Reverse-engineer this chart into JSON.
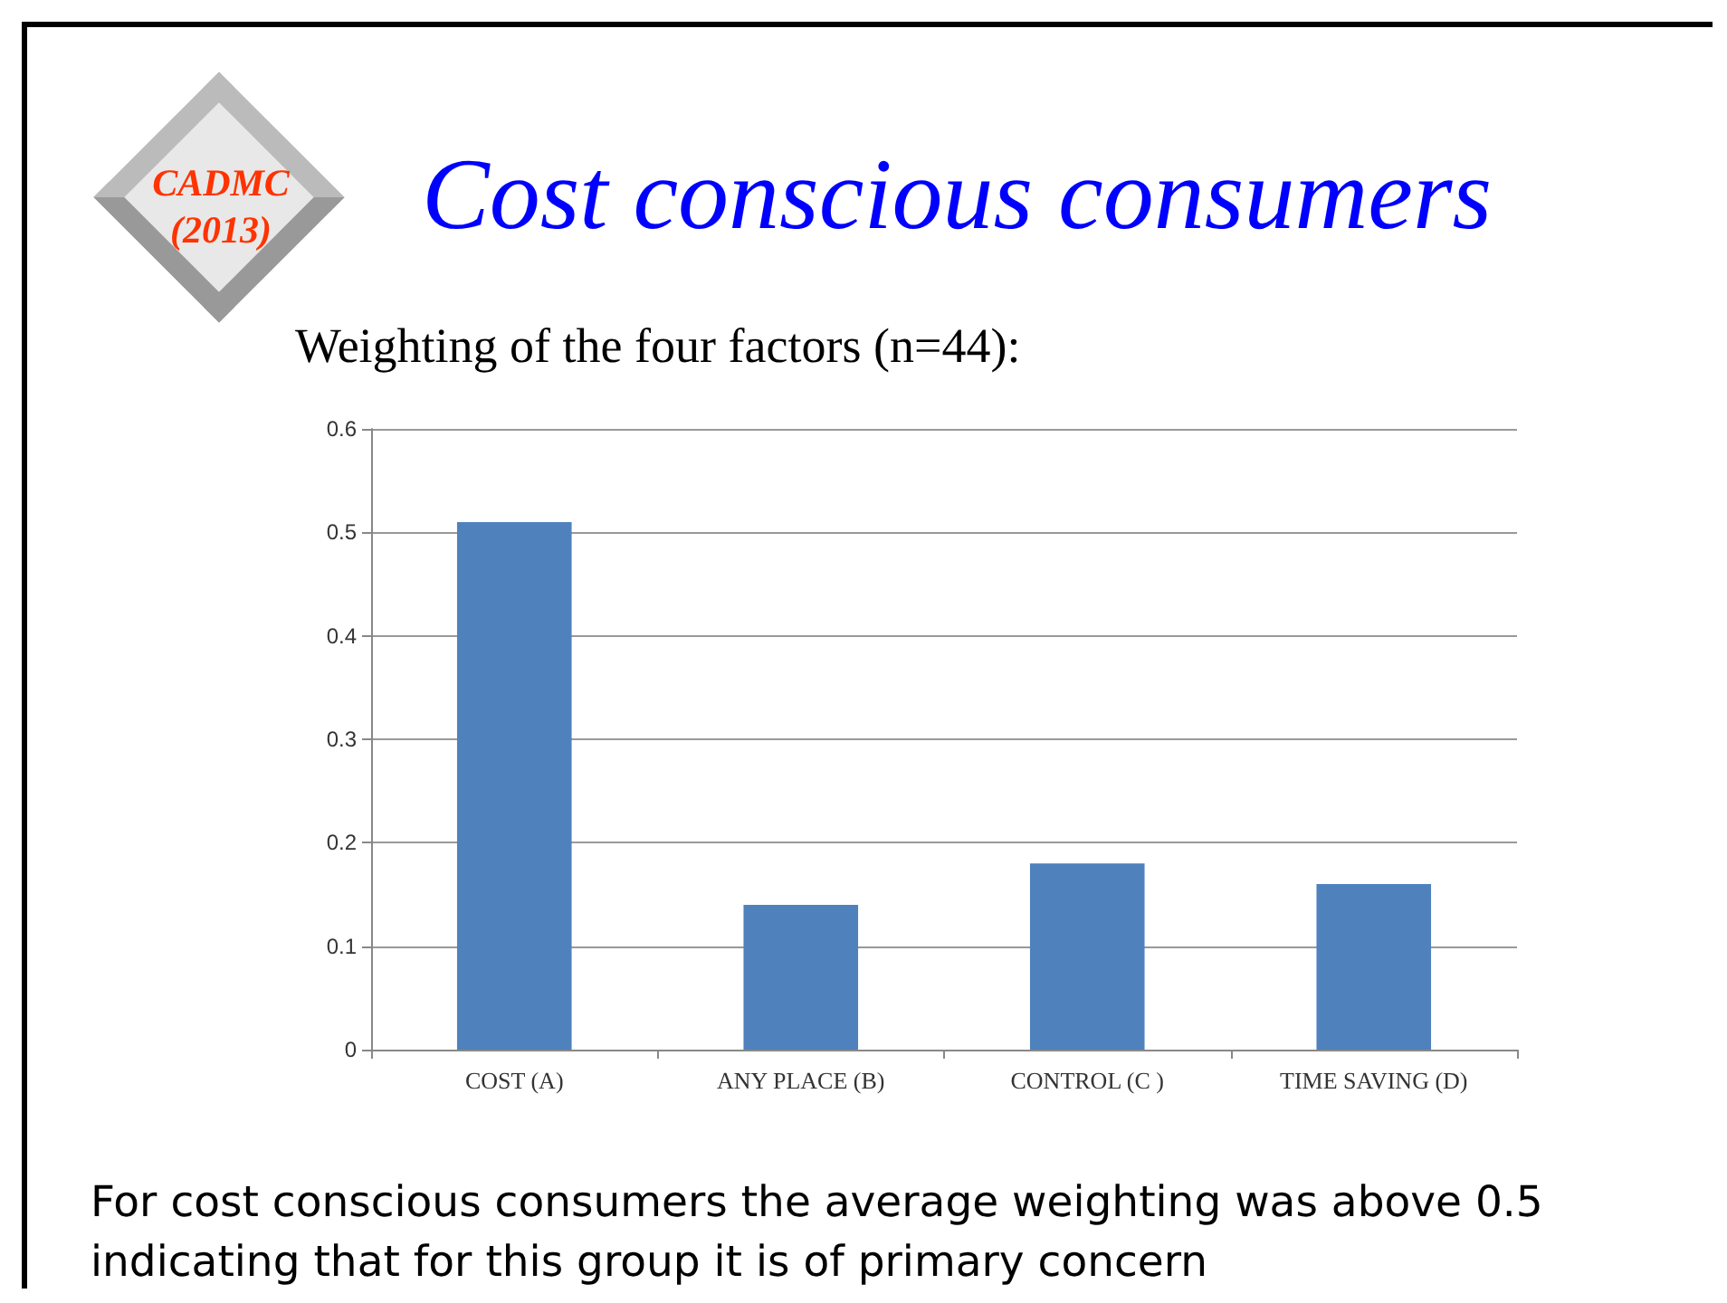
{
  "chart_data": {
    "type": "bar",
    "title": "Cost conscious consumers",
    "subtitle": "Weighting of the four factors (n=44):",
    "categories": [
      "COST (A)",
      "ANY PLACE (B)",
      "CONTROL (C )",
      "TIME SAVING (D)"
    ],
    "values": [
      0.51,
      0.14,
      0.18,
      0.16
    ],
    "color": "#4f81bd",
    "ylim": [
      0,
      0.6
    ],
    "yticks": [
      0,
      0.1,
      0.2,
      0.3,
      0.4,
      0.5,
      0.6
    ],
    "grid": "y",
    "annotations": [
      "CADMC (2013)",
      "For cost conscious consumers the average weighting was above 0.5 indicating that for this group it is of primary concern"
    ]
  }
}
